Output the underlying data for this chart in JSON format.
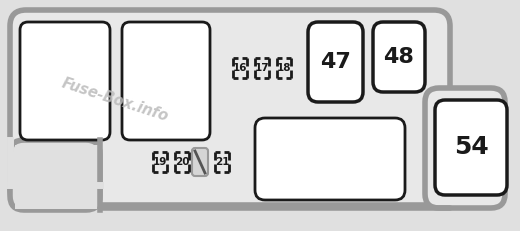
{
  "bg_color": "#e0e0e0",
  "body_color": "#e8e8e8",
  "body_edge": "#999999",
  "fuse_bg": "#ffffff",
  "fuse_border": "#1a1a1a",
  "text_color": "#1a1a1a",
  "watermark_color": "#bbbbbb",
  "fig_w": 5.2,
  "fig_h": 2.31,
  "dpi": 100,
  "outer_lw": 4,
  "fuse_lw": 2.0,
  "bracket_lw": 2.0
}
